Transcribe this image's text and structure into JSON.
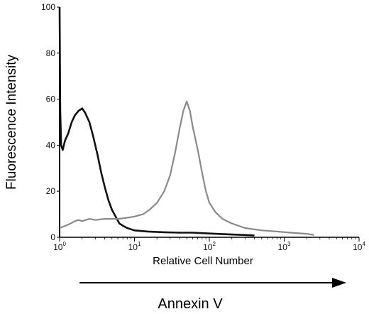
{
  "chart_data": {
    "type": "line",
    "ylabel": "Fluorescence Intensity",
    "inner_xlabel": "Relative Cell Number",
    "arrow_label": "Annexin V",
    "x_scale": "log",
    "xlim": [
      1,
      10000
    ],
    "ylim": [
      0,
      100
    ],
    "x_ticks": [
      {
        "value": 1,
        "base": "10",
        "exp": "0"
      },
      {
        "value": 10,
        "base": "10",
        "exp": "1"
      },
      {
        "value": 100,
        "base": "10",
        "exp": "2"
      },
      {
        "value": 1000,
        "base": "10",
        "exp": "3"
      },
      {
        "value": 10000,
        "base": "10",
        "exp": "4"
      }
    ],
    "y_ticks": [
      "0",
      "20",
      "40",
      "60",
      "80",
      "100"
    ],
    "grid": false,
    "series": [
      {
        "color": "#111111",
        "style": "dark",
        "points": [
          [
            1.0,
            100
          ],
          [
            1.02,
            55
          ],
          [
            1.05,
            40
          ],
          [
            1.1,
            38
          ],
          [
            1.18,
            42
          ],
          [
            1.3,
            45
          ],
          [
            1.45,
            50
          ],
          [
            1.6,
            53
          ],
          [
            1.8,
            55
          ],
          [
            2.0,
            56
          ],
          [
            2.2,
            54
          ],
          [
            2.5,
            50
          ],
          [
            2.8,
            44
          ],
          [
            3.2,
            36
          ],
          [
            3.6,
            28
          ],
          [
            4.0,
            22
          ],
          [
            4.5,
            16
          ],
          [
            5.0,
            12
          ],
          [
            5.6,
            9
          ],
          [
            6.3,
            6
          ],
          [
            7.0,
            5
          ],
          [
            8.0,
            4
          ],
          [
            10.0,
            3
          ],
          [
            15.0,
            2.5
          ],
          [
            25.0,
            2.2
          ],
          [
            40.0,
            2
          ],
          [
            60.0,
            2
          ],
          [
            80.0,
            1.8
          ],
          [
            120.0,
            1.5
          ],
          [
            200.0,
            1.2
          ],
          [
            300.0,
            1
          ],
          [
            400.0,
            0.8
          ]
        ]
      },
      {
        "color": "#8a8a8a",
        "style": "gray",
        "points": [
          [
            1.0,
            4
          ],
          [
            1.2,
            5
          ],
          [
            1.4,
            6
          ],
          [
            1.6,
            7
          ],
          [
            1.8,
            7.5
          ],
          [
            2.0,
            7
          ],
          [
            2.5,
            8
          ],
          [
            3.0,
            7.5
          ],
          [
            4.0,
            8
          ],
          [
            6.0,
            8
          ],
          [
            8.0,
            8.5
          ],
          [
            10.0,
            9
          ],
          [
            13.0,
            10
          ],
          [
            16.0,
            12
          ],
          [
            20.0,
            15
          ],
          [
            25.0,
            20
          ],
          [
            30.0,
            27
          ],
          [
            35.0,
            37
          ],
          [
            40.0,
            47
          ],
          [
            45.0,
            55
          ],
          [
            50.0,
            59
          ],
          [
            55.0,
            55
          ],
          [
            60.0,
            48
          ],
          [
            70.0,
            38
          ],
          [
            80.0,
            28
          ],
          [
            90.0,
            20
          ],
          [
            100.0,
            15
          ],
          [
            120.0,
            11
          ],
          [
            150.0,
            8
          ],
          [
            200.0,
            6
          ],
          [
            300.0,
            4
          ],
          [
            500.0,
            3
          ],
          [
            800.0,
            2.5
          ],
          [
            1200.0,
            2
          ],
          [
            2000.0,
            1.5
          ],
          [
            2500.0,
            1
          ]
        ]
      }
    ]
  }
}
